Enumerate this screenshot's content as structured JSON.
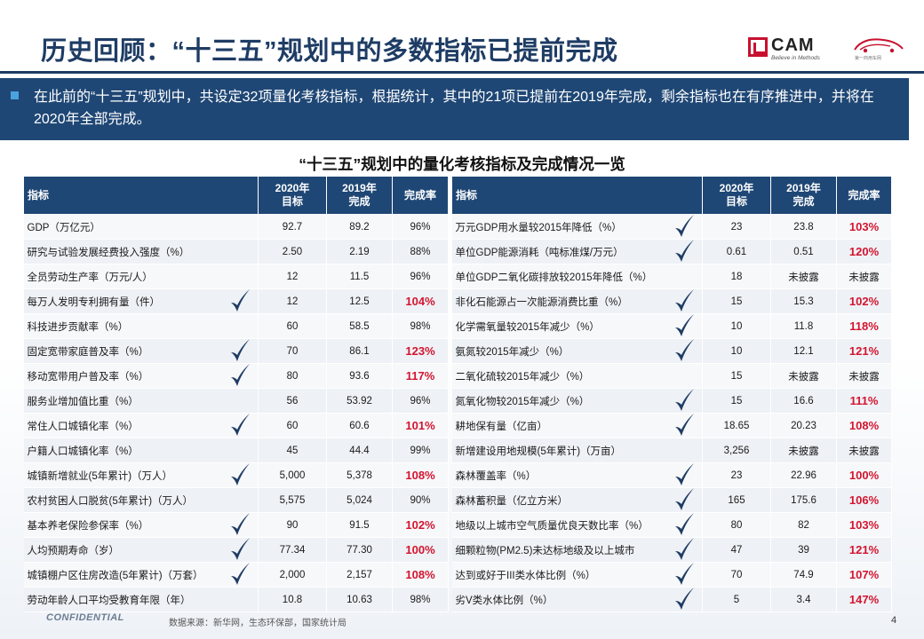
{
  "title": "历史回顾：“十三五”规划中的多数指标已提前完成",
  "logos": {
    "cam_text": "CAM",
    "cam_tagline": "Believe in Methods",
    "car_tagline": "第一商用车网"
  },
  "banner_text": "在此前的“十三五”规划中，共设定32项量化考核指标，根据统计，其中的21项已提前在2019年完成，剩余指标也在有序推进中，并将在2020年全部完成。",
  "table_title": "“十三五”规划中的量化考核指标及完成情况一览",
  "headers": {
    "indicator": "指标",
    "target2020": "2020年\n目标",
    "done2019": "2019年\n完成",
    "rate": "完成率"
  },
  "colors": {
    "navy": "#1f4775",
    "check": "#1e3c64",
    "highlight": "#d3142f"
  },
  "left_rows": [
    {
      "name": "GDP（万亿元）",
      "target": "92.7",
      "done": "89.2",
      "rate": "96%",
      "check": false,
      "highlight": false
    },
    {
      "name": "研究与试验发展经费投入强度（%）",
      "target": "2.50",
      "done": "2.19",
      "rate": "88%",
      "check": false,
      "highlight": false
    },
    {
      "name": "全员劳动生产率（万元/人）",
      "target": "12",
      "done": "11.5",
      "rate": "96%",
      "check": false,
      "highlight": false
    },
    {
      "name": "每万人发明专利拥有量（件）",
      "target": "12",
      "done": "12.5",
      "rate": "104%",
      "check": true,
      "highlight": true
    },
    {
      "name": "科技进步贡献率（%）",
      "target": "60",
      "done": "58.5",
      "rate": "98%",
      "check": false,
      "highlight": false
    },
    {
      "name": "固定宽带家庭普及率（%）",
      "target": "70",
      "done": "86.1",
      "rate": "123%",
      "check": true,
      "highlight": true
    },
    {
      "name": "移动宽带用户普及率（%）",
      "target": "80",
      "done": "93.6",
      "rate": "117%",
      "check": true,
      "highlight": true
    },
    {
      "name": "服务业增加值比重（%）",
      "target": "56",
      "done": "53.92",
      "rate": "96%",
      "check": false,
      "highlight": false
    },
    {
      "name": "常住人口城镇化率（%）",
      "target": "60",
      "done": "60.6",
      "rate": "101%",
      "check": true,
      "highlight": true
    },
    {
      "name": "户籍人口城镇化率（%）",
      "target": "45",
      "done": "44.4",
      "rate": "99%",
      "check": false,
      "highlight": false
    },
    {
      "name": "城镇新增就业(5年累计)（万人）",
      "target": "5,000",
      "done": "5,378",
      "rate": "108%",
      "check": true,
      "highlight": true
    },
    {
      "name": "农村贫困人口脱贫(5年累计)（万人）",
      "target": "5,575",
      "done": "5,024",
      "rate": "90%",
      "check": false,
      "highlight": false
    },
    {
      "name": "基本养老保险参保率（%）",
      "target": "90",
      "done": "91.5",
      "rate": "102%",
      "check": true,
      "highlight": true
    },
    {
      "name": "人均预期寿命（岁）",
      "target": "77.34",
      "done": "77.30",
      "rate": "100%",
      "check": true,
      "highlight": true
    },
    {
      "name": "城镇棚户区住房改造(5年累计)（万套）",
      "target": "2,000",
      "done": "2,157",
      "rate": "108%",
      "check": true,
      "highlight": true
    },
    {
      "name": "劳动年龄人口平均受教育年限（年）",
      "target": "10.8",
      "done": "10.63",
      "rate": "98%",
      "check": false,
      "highlight": false
    }
  ],
  "right_rows": [
    {
      "name": "万元GDP用水量较2015年降低（%）",
      "target": "23",
      "done": "23.8",
      "rate": "103%",
      "check": true,
      "highlight": true
    },
    {
      "name": "单位GDP能源消耗（吨标准煤/万元）",
      "target": "0.61",
      "done": "0.51",
      "rate": "120%",
      "check": true,
      "highlight": true
    },
    {
      "name": "单位GDP二氧化碳排放较2015年降低（%）",
      "target": "18",
      "done": "未披露",
      "rate": "未披露",
      "check": false,
      "highlight": false
    },
    {
      "name": "非化石能源占一次能源消费比重（%）",
      "target": "15",
      "done": "15.3",
      "rate": "102%",
      "check": true,
      "highlight": true
    },
    {
      "name": "化学需氧量较2015年减少（%）",
      "target": "10",
      "done": "11.8",
      "rate": "118%",
      "check": true,
      "highlight": true
    },
    {
      "name": "氨氮较2015年减少（%）",
      "target": "10",
      "done": "12.1",
      "rate": "121%",
      "check": true,
      "highlight": true
    },
    {
      "name": "二氧化硫较2015年减少（%）",
      "target": "15",
      "done": "未披露",
      "rate": "未披露",
      "check": false,
      "highlight": false
    },
    {
      "name": "氮氧化物较2015年减少（%）",
      "target": "15",
      "done": "16.6",
      "rate": "111%",
      "check": true,
      "highlight": true
    },
    {
      "name": "耕地保有量（亿亩）",
      "target": "18.65",
      "done": "20.23",
      "rate": "108%",
      "check": true,
      "highlight": true
    },
    {
      "name": "新增建设用地规模(5年累计)（万亩）",
      "target": "3,256",
      "done": "未披露",
      "rate": "未披露",
      "check": false,
      "highlight": false
    },
    {
      "name": "森林覆盖率（%）",
      "target": "23",
      "done": "22.96",
      "rate": "100%",
      "check": true,
      "highlight": true
    },
    {
      "name": "森林蓄积量（亿立方米）",
      "target": "165",
      "done": "175.6",
      "rate": "106%",
      "check": true,
      "highlight": true
    },
    {
      "name": "地级以上城市空气质量优良天数比率（%）",
      "target": "80",
      "done": "82",
      "rate": "103%",
      "check": true,
      "highlight": true
    },
    {
      "name": "细颗粒物(PM2.5)未达标地级及以上城市",
      "target": "47",
      "done": "39",
      "rate": "121%",
      "check": true,
      "highlight": true
    },
    {
      "name": "达到或好于III类水体比例（%）",
      "target": "70",
      "done": "74.9",
      "rate": "107%",
      "check": true,
      "highlight": true
    },
    {
      "name": "劣V类水体比例（%）",
      "target": "5",
      "done": "3.4",
      "rate": "147%",
      "check": true,
      "highlight": true
    }
  ],
  "footer": {
    "confidential": "CONFIDENTIAL",
    "source": "数据来源：新华网，生态环保部，国家统计局",
    "page": "4"
  }
}
